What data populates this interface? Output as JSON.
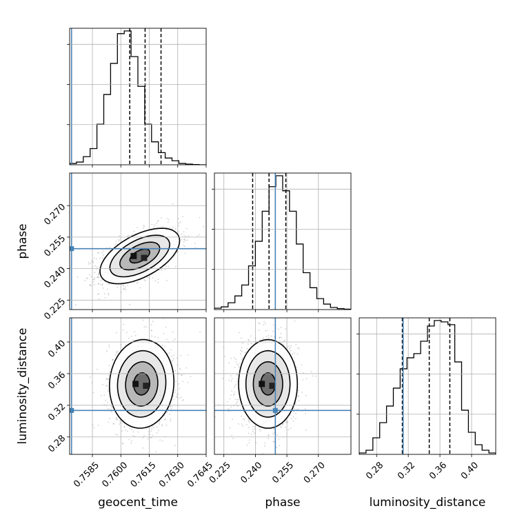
{
  "chart_data": {
    "type": "corner",
    "parameters": [
      "geocent_time",
      "phase",
      "luminosity_distance"
    ],
    "truths": [
      0.7574,
      0.2495,
      0.3135
    ],
    "colors": {
      "truth": "#4682b4",
      "hist": "#000000",
      "grid": "#b0b0b0",
      "scatter": "#777777"
    },
    "grid": true,
    "axes": [
      {
        "name": "geocent_time",
        "range": [
          0.7573,
          0.7645
        ],
        "ticks": [
          0.7585,
          0.76,
          0.7615,
          0.763,
          0.7645
        ],
        "tick_labels": [
          "0.7585",
          "0.7600",
          "0.7615",
          "0.7630",
          "0.7645"
        ]
      },
      {
        "name": "phase",
        "range": [
          0.2205,
          0.2855
        ],
        "ticks": [
          0.225,
          0.24,
          0.255,
          0.27
        ],
        "tick_labels": [
          "0.225",
          "0.240",
          "0.255",
          "0.270"
        ]
      },
      {
        "name": "luminosity_distance",
        "range": [
          0.258,
          0.4305
        ],
        "ticks": [
          0.28,
          0.32,
          0.36,
          0.4
        ],
        "tick_labels": [
          "0.28",
          "0.32",
          "0.36",
          "0.40"
        ]
      }
    ],
    "histograms": [
      {
        "name": "geocent_time",
        "edges_range": [
          0.7573,
          0.7645
        ],
        "counts": [
          0.01,
          0.02,
          0.06,
          0.12,
          0.3,
          0.52,
          0.75,
          0.97,
          0.99,
          0.8,
          0.58,
          0.3,
          0.17,
          0.09,
          0.05,
          0.03,
          0.01,
          0.005,
          0.002,
          0.0
        ],
        "quantiles": [
          0.76047,
          0.76128,
          0.76212
        ]
      },
      {
        "name": "phase",
        "edges_range": [
          0.2205,
          0.2855
        ],
        "counts": [
          0.01,
          0.02,
          0.05,
          0.1,
          0.18,
          0.32,
          0.5,
          0.72,
          0.9,
          0.98,
          0.87,
          0.72,
          0.48,
          0.27,
          0.16,
          0.08,
          0.04,
          0.015,
          0.007,
          0.003
        ],
        "quantiles": [
          0.2387,
          0.2465,
          0.2545
        ]
      },
      {
        "name": "luminosity_distance",
        "edges_range": [
          0.258,
          0.4305
        ],
        "counts": [
          0.01,
          0.03,
          0.12,
          0.23,
          0.35,
          0.48,
          0.62,
          0.7,
          0.73,
          0.82,
          0.93,
          0.97,
          0.96,
          0.94,
          0.67,
          0.32,
          0.16,
          0.07,
          0.03,
          0.01
        ],
        "quantiles": [
          0.3125,
          0.3465,
          0.3725
        ]
      }
    ],
    "pairs": [
      {
        "x": "geocent_time",
        "y": "phase",
        "mean": [
          0.761,
          0.246
        ],
        "sd": [
          0.00105,
          0.0066
        ],
        "rho": 0.55
      },
      {
        "x": "geocent_time",
        "y": "luminosity_distance",
        "mean": [
          0.7611,
          0.347
        ],
        "sd": [
          0.00085,
          0.028
        ],
        "rho": 0.05
      },
      {
        "x": "phase",
        "y": "luminosity_distance",
        "mean": [
          0.246,
          0.347
        ],
        "sd": [
          0.007,
          0.028
        ],
        "rho": 0.0
      }
    ]
  }
}
